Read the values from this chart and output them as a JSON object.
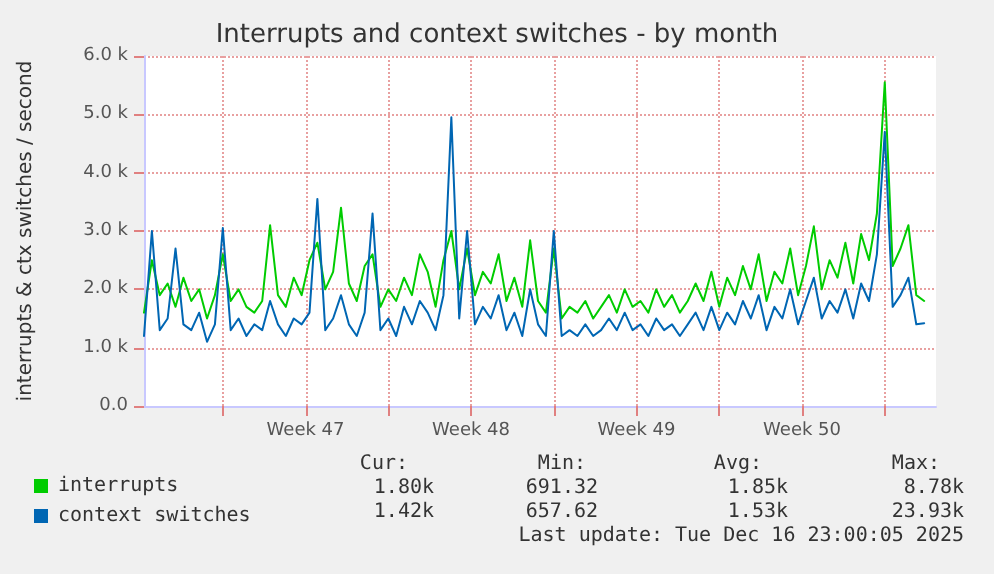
{
  "chart_data": {
    "type": "line",
    "title": "Interrupts and context switches - by month",
    "ylabel": "interrupts & ctx switches / second",
    "x": [
      "2025-11-13T16:00",
      "2025-11-14T00:00",
      "2025-11-14T08:00",
      "2025-11-14T16:00",
      "2025-11-15T00:00",
      "2025-11-15T08:00",
      "2025-11-15T16:00",
      "2025-11-16T00:00",
      "2025-11-16T08:00",
      "2025-11-16T16:00",
      "2025-11-17T00:00",
      "2025-11-17T08:00",
      "2025-11-17T16:00",
      "2025-11-18T00:00",
      "2025-11-18T08:00",
      "2025-11-18T16:00",
      "2025-11-19T00:00",
      "2025-11-19T08:00",
      "2025-11-19T16:00",
      "2025-11-20T00:00",
      "2025-11-20T08:00",
      "2025-11-20T16:00",
      "2025-11-21T00:00",
      "2025-11-21T08:00",
      "2025-11-21T16:00",
      "2025-11-22T00:00",
      "2025-11-22T08:00",
      "2025-11-22T16:00",
      "2025-11-23T00:00",
      "2025-11-23T08:00",
      "2025-11-23T16:00",
      "2025-11-24T00:00",
      "2025-11-24T08:00",
      "2025-11-24T16:00",
      "2025-11-25T00:00",
      "2025-11-25T08:00",
      "2025-11-25T16:00",
      "2025-11-26T00:00",
      "2025-11-26T08:00",
      "2025-11-26T16:00",
      "2025-11-27T00:00",
      "2025-11-27T08:00",
      "2025-11-27T16:00",
      "2025-11-28T00:00",
      "2025-11-28T08:00",
      "2025-11-28T16:00",
      "2025-11-29T00:00",
      "2025-11-29T08:00",
      "2025-11-29T16:00",
      "2025-11-30T00:00",
      "2025-11-30T08:00",
      "2025-11-30T16:00",
      "2025-12-01T00:00",
      "2025-12-01T08:00",
      "2025-12-01T16:00",
      "2025-12-02T00:00",
      "2025-12-02T08:00",
      "2025-12-02T16:00",
      "2025-12-03T00:00",
      "2025-12-03T08:00",
      "2025-12-03T16:00",
      "2025-12-04T00:00",
      "2025-12-04T08:00",
      "2025-12-04T16:00",
      "2025-12-05T00:00",
      "2025-12-05T08:00",
      "2025-12-05T16:00",
      "2025-12-06T00:00",
      "2025-12-06T08:00",
      "2025-12-06T16:00",
      "2025-12-07T00:00",
      "2025-12-07T08:00",
      "2025-12-07T16:00",
      "2025-12-08T00:00",
      "2025-12-08T08:00",
      "2025-12-08T16:00",
      "2025-12-09T00:00",
      "2025-12-09T08:00",
      "2025-12-09T16:00",
      "2025-12-10T00:00",
      "2025-12-10T08:00",
      "2025-12-10T16:00",
      "2025-12-11T00:00",
      "2025-12-11T08:00",
      "2025-12-11T16:00",
      "2025-12-12T00:00",
      "2025-12-12T08:00",
      "2025-12-12T16:00",
      "2025-12-13T00:00",
      "2025-12-13T08:00",
      "2025-12-13T16:00",
      "2025-12-14T00:00",
      "2025-12-14T08:00",
      "2025-12-14T16:00",
      "2025-12-15T00:00",
      "2025-12-15T08:00",
      "2025-12-15T16:00",
      "2025-12-16T00:00",
      "2025-12-16T08:00",
      "2025-12-16T16:00"
    ],
    "series": [
      {
        "name": "interrupts",
        "color": "#00cc00",
        "values": [
          1600,
          2500,
          1900,
          2100,
          1700,
          2200,
          1800,
          2000,
          1500,
          1900,
          2600,
          1800,
          2000,
          1700,
          1600,
          1800,
          3100,
          1900,
          1700,
          2200,
          1900,
          2500,
          2800,
          2000,
          2300,
          3400,
          2100,
          1800,
          2400,
          2600,
          1700,
          2000,
          1800,
          2200,
          1900,
          2600,
          2300,
          1700,
          2500,
          3000,
          2000,
          2700,
          1900,
          2300,
          2100,
          2600,
          1800,
          2200,
          1700,
          2840,
          1800,
          1600,
          2700,
          1500,
          1700,
          1600,
          1800,
          1500,
          1700,
          1900,
          1600,
          2000,
          1700,
          1800,
          1600,
          2000,
          1700,
          1900,
          1600,
          1800,
          2100,
          1800,
          2300,
          1700,
          2200,
          1900,
          2400,
          2000,
          2600,
          1800,
          2300,
          2100,
          2700,
          1900,
          2400,
          3080,
          2000,
          2500,
          2200,
          2800,
          2100,
          2950,
          2500,
          3300,
          5550,
          2400,
          2700,
          3100,
          1900,
          1800
        ]
      },
      {
        "name": "context switches",
        "color": "#0066b3",
        "values": [
          1200,
          3000,
          1300,
          1500,
          2700,
          1400,
          1300,
          1600,
          1100,
          1400,
          3050,
          1300,
          1500,
          1200,
          1400,
          1300,
          1800,
          1400,
          1200,
          1500,
          1400,
          1600,
          3550,
          1300,
          1500,
          1900,
          1400,
          1200,
          1600,
          3300,
          1300,
          1500,
          1200,
          1700,
          1400,
          1800,
          1600,
          1300,
          1900,
          4950,
          1500,
          3000,
          1400,
          1700,
          1500,
          1900,
          1300,
          1600,
          1200,
          2000,
          1400,
          1200,
          3000,
          1200,
          1300,
          1200,
          1400,
          1200,
          1300,
          1500,
          1300,
          1600,
          1300,
          1400,
          1200,
          1500,
          1300,
          1400,
          1200,
          1400,
          1600,
          1300,
          1700,
          1300,
          1600,
          1400,
          1800,
          1500,
          1900,
          1300,
          1700,
          1500,
          2000,
          1400,
          1800,
          2200,
          1500,
          1800,
          1600,
          2000,
          1500,
          2100,
          1800,
          2600,
          4700,
          1700,
          1900,
          2200,
          1400,
          1420
        ]
      }
    ],
    "xlim": [
      "2025-11-13T16:00",
      "2025-12-17T04:00"
    ],
    "xticks": [
      {
        "value": "2025-11-17T00:00",
        "label": null
      },
      {
        "value": "2025-11-20T12:00",
        "label": "Week 47"
      },
      {
        "value": "2025-11-24T00:00",
        "label": null
      },
      {
        "value": "2025-11-27T12:00",
        "label": "Week 48"
      },
      {
        "value": "2025-12-01T00:00",
        "label": null
      },
      {
        "value": "2025-12-04T12:00",
        "label": "Week 49"
      },
      {
        "value": "2025-12-08T00:00",
        "label": null
      },
      {
        "value": "2025-12-11T12:00",
        "label": "Week 50"
      },
      {
        "value": "2025-12-15T00:00",
        "label": null
      }
    ],
    "ylim": [
      0,
      6000
    ],
    "yticks": [
      {
        "value": 0,
        "label": "0.0"
      },
      {
        "value": 1000,
        "label": "1.0 k"
      },
      {
        "value": 2000,
        "label": "2.0 k"
      },
      {
        "value": 3000,
        "label": "3.0 k"
      },
      {
        "value": 4000,
        "label": "4.0 k"
      },
      {
        "value": 5000,
        "label": "5.0 k"
      },
      {
        "value": 6000,
        "label": "6.0 k"
      }
    ],
    "grid": true,
    "legend": "bottom left",
    "marker": "none",
    "line_style": "solid",
    "annotations": [
      "Cur:",
      "Min:",
      "Avg:",
      "Max:",
      "1.80k",
      "691.32",
      "1.85k",
      "8.78k",
      "1.42k",
      "657.62",
      "1.53k",
      "23.93k",
      "Last update: Tue Dec 16 23:00:05 2025"
    ]
  }
}
